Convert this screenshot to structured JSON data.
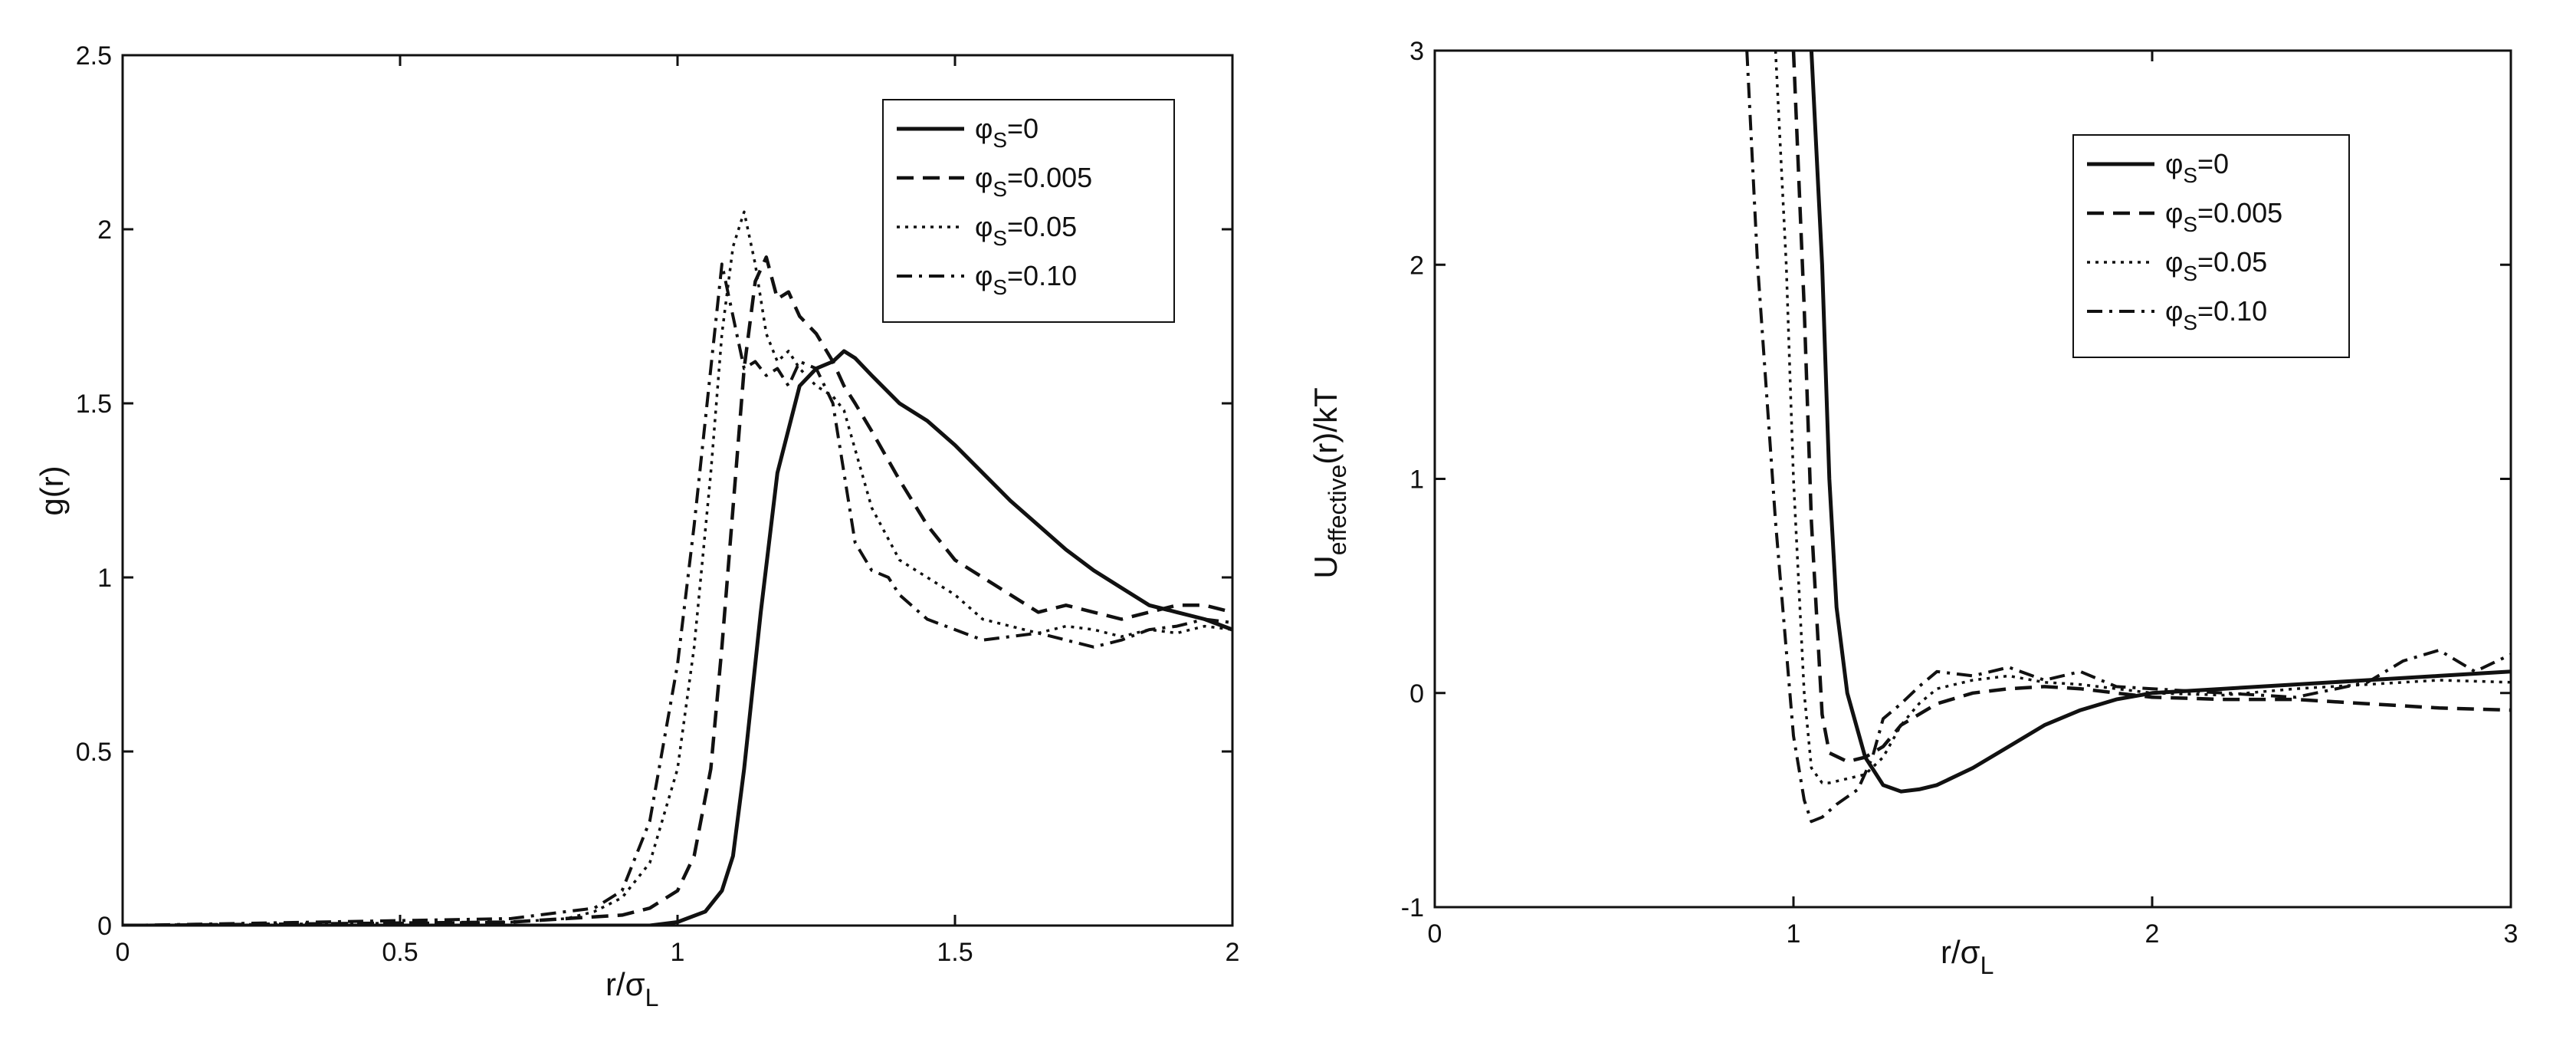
{
  "chart_data": [
    {
      "type": "line",
      "xlabel": "r/σ",
      "xlabel_sub": "L",
      "ylabel": "g(r)",
      "xlim": [
        0,
        2
      ],
      "ylim": [
        0,
        2.5
      ],
      "xticks": [
        0,
        0.5,
        1,
        1.5,
        2
      ],
      "xtick_labels": [
        "0",
        "0.5",
        "1",
        "1.5",
        "2"
      ],
      "yticks": [
        0,
        0.5,
        1,
        1.5,
        2,
        2.5
      ],
      "ytick_labels": [
        "0",
        "0.5",
        "1",
        "1.5",
        "2",
        "2.5"
      ],
      "legend_position": "top-right",
      "series": [
        {
          "name": "φS=0",
          "sym": "φ",
          "sub": "S",
          "val": "=0",
          "style": "solid",
          "x": [
            0,
            0.95,
            1.0,
            1.05,
            1.08,
            1.1,
            1.12,
            1.15,
            1.18,
            1.22,
            1.25,
            1.28,
            1.3,
            1.32,
            1.35,
            1.4,
            1.45,
            1.5,
            1.55,
            1.6,
            1.65,
            1.7,
            1.75,
            1.8,
            1.85,
            1.9,
            1.95,
            2.0
          ],
          "y": [
            0,
            0,
            0.01,
            0.04,
            0.1,
            0.2,
            0.45,
            0.9,
            1.3,
            1.55,
            1.6,
            1.62,
            1.65,
            1.63,
            1.58,
            1.5,
            1.45,
            1.38,
            1.3,
            1.22,
            1.15,
            1.08,
            1.02,
            0.97,
            0.92,
            0.9,
            0.88,
            0.85
          ]
        },
        {
          "name": "φS=0.005",
          "sym": "φ",
          "sub": "S",
          "val": "=0.005",
          "style": "dashed",
          "x": [
            0,
            0.7,
            0.8,
            0.9,
            0.95,
            1.0,
            1.03,
            1.06,
            1.08,
            1.1,
            1.12,
            1.14,
            1.16,
            1.18,
            1.2,
            1.22,
            1.25,
            1.28,
            1.3,
            1.32,
            1.35,
            1.4,
            1.45,
            1.5,
            1.55,
            1.6,
            1.65,
            1.7,
            1.75,
            1.8,
            1.85,
            1.9,
            1.95,
            2.0
          ],
          "y": [
            0,
            0.01,
            0.02,
            0.03,
            0.05,
            0.1,
            0.2,
            0.45,
            0.8,
            1.2,
            1.6,
            1.85,
            1.92,
            1.8,
            1.82,
            1.75,
            1.7,
            1.62,
            1.55,
            1.5,
            1.42,
            1.28,
            1.15,
            1.05,
            1.0,
            0.95,
            0.9,
            0.92,
            0.9,
            0.88,
            0.9,
            0.92,
            0.92,
            0.9
          ]
        },
        {
          "name": "φS=0.05",
          "sym": "φ",
          "sub": "S",
          "val": "=0.05",
          "style": "dotted",
          "x": [
            0,
            0.7,
            0.8,
            0.85,
            0.9,
            0.95,
            1.0,
            1.03,
            1.06,
            1.08,
            1.1,
            1.12,
            1.14,
            1.16,
            1.18,
            1.2,
            1.22,
            1.25,
            1.28,
            1.3,
            1.35,
            1.4,
            1.45,
            1.5,
            1.55,
            1.6,
            1.65,
            1.7,
            1.75,
            1.8,
            1.85,
            1.9,
            1.95,
            2.0
          ],
          "y": [
            0,
            0.01,
            0.02,
            0.04,
            0.08,
            0.18,
            0.45,
            0.8,
            1.3,
            1.7,
            1.95,
            2.05,
            1.9,
            1.7,
            1.62,
            1.65,
            1.6,
            1.55,
            1.52,
            1.48,
            1.2,
            1.05,
            1.0,
            0.95,
            0.88,
            0.86,
            0.84,
            0.86,
            0.85,
            0.83,
            0.85,
            0.84,
            0.86,
            0.85
          ]
        },
        {
          "name": "φS=0.10",
          "sym": "φ",
          "sub": "S",
          "val": "=0.10",
          "style": "dashdot",
          "x": [
            0,
            0.7,
            0.8,
            0.85,
            0.9,
            0.95,
            1.0,
            1.03,
            1.06,
            1.08,
            1.1,
            1.12,
            1.14,
            1.16,
            1.18,
            1.2,
            1.22,
            1.25,
            1.28,
            1.3,
            1.32,
            1.35,
            1.38,
            1.4,
            1.45,
            1.5,
            1.55,
            1.6,
            1.65,
            1.7,
            1.75,
            1.8,
            1.85,
            1.9,
            1.95,
            2.0
          ],
          "y": [
            0,
            0.02,
            0.04,
            0.05,
            0.1,
            0.3,
            0.75,
            1.15,
            1.6,
            1.9,
            1.75,
            1.6,
            1.62,
            1.58,
            1.6,
            1.55,
            1.62,
            1.6,
            1.5,
            1.3,
            1.1,
            1.02,
            1.0,
            0.95,
            0.88,
            0.85,
            0.82,
            0.83,
            0.84,
            0.82,
            0.8,
            0.82,
            0.85,
            0.86,
            0.88,
            0.87
          ]
        }
      ]
    },
    {
      "type": "line",
      "xlabel": "r/σ",
      "xlabel_sub": "L",
      "ylabel": "U",
      "ylabel_sub": "effective",
      "ylabel_rest": "(r)/kT",
      "xlim": [
        0,
        3
      ],
      "ylim": [
        -1,
        3
      ],
      "xticks": [
        0,
        1,
        2,
        3
      ],
      "xtick_labels": [
        "0",
        "1",
        "2",
        "3"
      ],
      "yticks": [
        -1,
        0,
        1,
        2,
        3
      ],
      "ytick_labels": [
        "-1",
        "0",
        "1",
        "2",
        "3"
      ],
      "legend_position": "top-right",
      "series": [
        {
          "name": "φS=0",
          "sym": "φ",
          "sub": "S",
          "val": "=0",
          "style": "solid",
          "x": [
            1.05,
            1.08,
            1.1,
            1.12,
            1.15,
            1.2,
            1.25,
            1.3,
            1.35,
            1.4,
            1.5,
            1.6,
            1.7,
            1.8,
            1.9,
            2.0,
            2.2,
            2.4,
            2.6,
            2.8,
            3.0
          ],
          "y": [
            3.0,
            2.0,
            1.0,
            0.4,
            0.0,
            -0.3,
            -0.43,
            -0.46,
            -0.45,
            -0.43,
            -0.35,
            -0.25,
            -0.15,
            -0.08,
            -0.03,
            0.0,
            0.02,
            0.04,
            0.06,
            0.08,
            0.1
          ]
        },
        {
          "name": "φS=0.005",
          "sym": "φ",
          "sub": "S",
          "val": "=0.005",
          "style": "dashed",
          "x": [
            1.0,
            1.03,
            1.05,
            1.08,
            1.1,
            1.15,
            1.2,
            1.25,
            1.3,
            1.4,
            1.5,
            1.6,
            1.7,
            1.8,
            1.9,
            2.0,
            2.2,
            2.4,
            2.6,
            2.8,
            3.0
          ],
          "y": [
            3.0,
            1.8,
            0.8,
            -0.1,
            -0.28,
            -0.32,
            -0.3,
            -0.25,
            -0.15,
            -0.05,
            0.0,
            0.02,
            0.03,
            0.02,
            0.0,
            -0.02,
            -0.03,
            -0.03,
            -0.05,
            -0.07,
            -0.08
          ]
        },
        {
          "name": "φS=0.05",
          "sym": "φ",
          "sub": "S",
          "val": "=0.05",
          "style": "dotted",
          "x": [
            0.95,
            0.98,
            1.0,
            1.03,
            1.05,
            1.08,
            1.1,
            1.15,
            1.2,
            1.25,
            1.3,
            1.35,
            1.4,
            1.5,
            1.6,
            1.7,
            1.8,
            1.9,
            2.0,
            2.2,
            2.4,
            2.6,
            2.8,
            3.0
          ],
          "y": [
            3.0,
            2.0,
            1.0,
            0.0,
            -0.35,
            -0.42,
            -0.42,
            -0.4,
            -0.38,
            -0.3,
            -0.15,
            -0.05,
            0.02,
            0.06,
            0.08,
            0.05,
            0.04,
            0.02,
            0.0,
            -0.01,
            0.02,
            0.04,
            0.06,
            0.05
          ]
        },
        {
          "name": "φS=0.10",
          "sym": "φ",
          "sub": "S",
          "val": "=0.10",
          "style": "dashdot",
          "x": [
            0.87,
            0.9,
            0.95,
            1.0,
            1.03,
            1.05,
            1.08,
            1.12,
            1.18,
            1.22,
            1.25,
            1.3,
            1.35,
            1.4,
            1.5,
            1.6,
            1.7,
            1.8,
            1.9,
            2.0,
            2.2,
            2.4,
            2.6,
            2.7,
            2.8,
            2.9,
            3.0
          ],
          "y": [
            3.0,
            2.0,
            0.8,
            -0.2,
            -0.5,
            -0.6,
            -0.58,
            -0.52,
            -0.45,
            -0.3,
            -0.12,
            -0.05,
            0.03,
            0.1,
            0.08,
            0.12,
            0.06,
            0.1,
            0.03,
            0.02,
            0.0,
            -0.02,
            0.05,
            0.15,
            0.2,
            0.1,
            0.18
          ]
        }
      ]
    }
  ]
}
